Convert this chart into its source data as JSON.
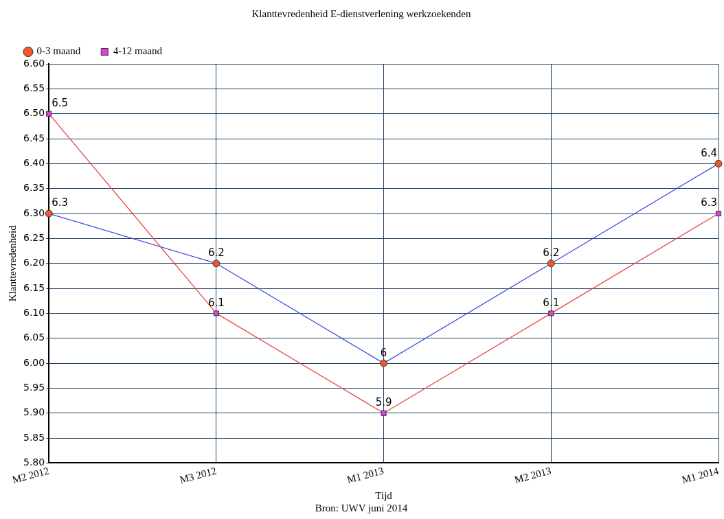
{
  "chart_data": {
    "type": "line",
    "title": "Klanttevredenheid E-dienstverlening werkzoekenden",
    "xlabel": "Tijd",
    "ylabel": "Klanttevredenheid",
    "annotations": [
      "Bron: UWV juni 2014"
    ],
    "categories": [
      "M2 2012",
      "M3 2012",
      "M1 2013",
      "M2 2013",
      "M1 2014"
    ],
    "series": [
      {
        "name": "0-3 maand",
        "color": "#4646e6",
        "colors": [
          "#f05a28",
          "#f05a28",
          "#f05a28",
          "#f05a28",
          "#f05a28"
        ],
        "marker": "circle",
        "values": [
          6.3,
          6.2,
          6.0,
          6.2,
          6.4
        ]
      },
      {
        "name": "4-12 maand",
        "color": "#e84646",
        "colors": [
          "#e040e0",
          "#e040e0",
          "#e040e0",
          "#e040e0",
          "#e040e0"
        ],
        "marker": "square",
        "values": [
          6.5,
          6.1,
          5.9,
          6.1,
          6.3
        ]
      }
    ],
    "ylim": [
      5.8,
      6.6
    ],
    "yticks": [
      {
        "value": 5.8,
        "label": "5.80"
      },
      {
        "value": 5.85,
        "label": "5.85"
      },
      {
        "value": 5.9,
        "label": "5.90"
      },
      {
        "value": 5.95,
        "label": "5.95"
      },
      {
        "value": 6.0,
        "label": "6.00"
      },
      {
        "value": 6.05,
        "label": "6.05"
      },
      {
        "value": 6.1,
        "label": "6.10"
      },
      {
        "value": 6.15,
        "label": "6.15"
      },
      {
        "value": 6.2,
        "label": "6.20"
      },
      {
        "value": 6.25,
        "label": "6.25"
      },
      {
        "value": 6.3,
        "label": "6.30"
      },
      {
        "value": 6.35,
        "label": "6.35"
      },
      {
        "value": 6.4,
        "label": "6.40"
      },
      {
        "value": 6.45,
        "label": "6.45"
      },
      {
        "value": 6.5,
        "label": "6.50"
      },
      {
        "value": 6.55,
        "label": "6.55"
      },
      {
        "value": 6.6,
        "label": "6.60"
      }
    ],
    "grid": true,
    "legend": "top left",
    "data_labels": true,
    "line_style": "solid"
  }
}
